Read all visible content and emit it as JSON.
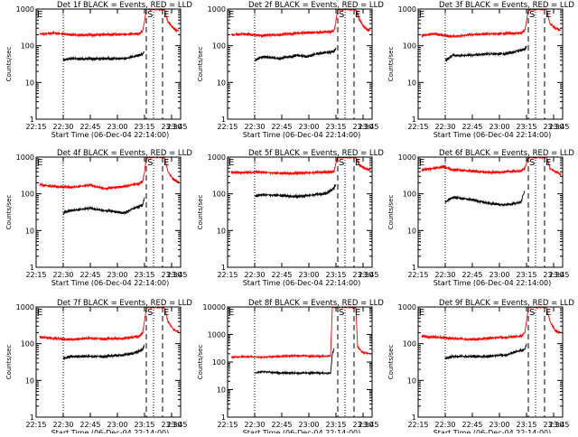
{
  "colors": {
    "events": "#000000",
    "lld": "#ff0000",
    "axis": "#000000"
  },
  "shared": {
    "ylabel": "Counts/sec",
    "xlabel": "Start Time (06-Dec-04 22:14:00)",
    "xticks": [
      "22:15",
      "22:30",
      "22:45",
      "23:00",
      "23:15",
      "23:30",
      "23:45"
    ],
    "markers": {
      "S": "S",
      "E": "E"
    }
  },
  "chart_data": [
    {
      "type": "line",
      "title": "Det 1f BLACK = Events, RED = LLD",
      "ylog": true,
      "ylim": [
        1,
        1000
      ],
      "yticks": [
        "1",
        "10",
        "100",
        "1000"
      ],
      "xlim_min": [
        1,
        81
      ],
      "dotted_x_min": [
        16,
        66
      ],
      "dashed_x_min": [
        62,
        71
      ],
      "S_min": 62,
      "E_min": 71,
      "top_E_min": 1,
      "series": [
        {
          "name": "Events",
          "x_min": [
            16,
            20,
            30,
            40,
            50,
            55,
            60,
            61
          ],
          "y": [
            40,
            45,
            44,
            44,
            45,
            50,
            60,
            70
          ]
        },
        {
          "name": "LLD",
          "x_min": [
            3,
            10,
            20,
            30,
            40,
            50,
            58,
            60,
            61,
            62,
            72,
            74,
            77,
            80
          ],
          "y": [
            210,
            220,
            200,
            195,
            200,
            205,
            210,
            260,
            450,
            1000,
            1000,
            450,
            300,
            250
          ]
        }
      ]
    },
    {
      "type": "line",
      "title": "Det 2f BLACK = Events, RED = LLD",
      "ylog": true,
      "ylim": [
        1,
        1000
      ],
      "yticks": [
        "1",
        "10",
        "100",
        "1000"
      ],
      "xlim_min": [
        1,
        81
      ],
      "dotted_x_min": [
        16,
        66
      ],
      "dashed_x_min": [
        62,
        71
      ],
      "S_min": 62,
      "E_min": 71,
      "top_E_min": 1,
      "series": [
        {
          "name": "Events",
          "x_min": [
            16,
            20,
            30,
            40,
            45,
            50,
            55,
            60,
            61
          ],
          "y": [
            40,
            50,
            45,
            55,
            50,
            60,
            65,
            70,
            90
          ]
        },
        {
          "name": "LLD",
          "x_min": [
            3,
            10,
            20,
            30,
            40,
            50,
            58,
            60,
            61,
            62,
            72,
            74,
            77,
            80
          ],
          "y": [
            200,
            210,
            190,
            200,
            220,
            230,
            240,
            260,
            450,
            1000,
            1000,
            500,
            300,
            260
          ]
        }
      ]
    },
    {
      "type": "line",
      "title": "Det 3f BLACK = Events, RED = LLD",
      "ylog": true,
      "ylim": [
        1,
        1000
      ],
      "yticks": [
        "1",
        "10",
        "100",
        "1000"
      ],
      "xlim_min": [
        1,
        81
      ],
      "dotted_x_min": [
        16,
        66
      ],
      "dashed_x_min": [
        62,
        71
      ],
      "S_min": 62,
      "E_min": 71,
      "top_E_min": 1,
      "series": [
        {
          "name": "Events",
          "x_min": [
            16,
            20,
            30,
            40,
            50,
            55,
            60,
            61
          ],
          "y": [
            40,
            55,
            55,
            60,
            60,
            70,
            80,
            100
          ]
        },
        {
          "name": "LLD",
          "x_min": [
            3,
            10,
            20,
            30,
            40,
            50,
            58,
            60,
            61,
            62,
            72,
            74,
            77,
            80
          ],
          "y": [
            190,
            210,
            180,
            200,
            210,
            215,
            220,
            260,
            450,
            1000,
            1000,
            400,
            300,
            260
          ]
        }
      ]
    },
    {
      "type": "line",
      "title": "Det 4f BLACK = Events, RED = LLD",
      "ylog": true,
      "ylim": [
        1,
        1000
      ],
      "yticks": [
        "1",
        "10",
        "100",
        "1000"
      ],
      "xlim_min": [
        1,
        81
      ],
      "dotted_x_min": [
        16,
        66
      ],
      "dashed_x_min": [
        62,
        71
      ],
      "S_min": 62,
      "E_min": 71,
      "top_E_min": 1,
      "series": [
        {
          "name": "Events",
          "x_min": [
            16,
            20,
            30,
            40,
            50,
            55,
            60,
            61
          ],
          "y": [
            30,
            35,
            40,
            35,
            30,
            40,
            50,
            80
          ]
        },
        {
          "name": "LLD",
          "x_min": [
            3,
            10,
            20,
            30,
            40,
            50,
            58,
            60,
            61,
            62,
            72,
            74,
            77,
            80
          ],
          "y": [
            180,
            160,
            150,
            170,
            140,
            160,
            190,
            220,
            400,
            1000,
            1000,
            400,
            250,
            200
          ]
        }
      ]
    },
    {
      "type": "line",
      "title": "Det 5f BLACK = Events, RED = LLD",
      "ylog": true,
      "ylim": [
        1,
        1000
      ],
      "yticks": [
        "1",
        "10",
        "100",
        "1000"
      ],
      "xlim_min": [
        1,
        81
      ],
      "dotted_x_min": [
        16,
        66
      ],
      "dashed_x_min": [
        62,
        71
      ],
      "S_min": 62,
      "E_min": 71,
      "top_E_min": 1,
      "series": [
        {
          "name": "Events",
          "x_min": [
            16,
            20,
            30,
            40,
            50,
            55,
            58,
            60,
            61
          ],
          "y": [
            85,
            95,
            90,
            85,
            95,
            100,
            120,
            150,
            180
          ]
        },
        {
          "name": "LLD",
          "x_min": [
            3,
            10,
            20,
            30,
            40,
            50,
            58,
            60,
            61,
            62,
            72,
            74,
            77,
            80
          ],
          "y": [
            380,
            380,
            390,
            360,
            370,
            380,
            390,
            420,
            700,
            1000,
            1000,
            600,
            500,
            450
          ]
        }
      ]
    },
    {
      "type": "line",
      "title": "Det 6f BLACK = Events, RED = LLD",
      "ylog": true,
      "ylim": [
        1,
        1000
      ],
      "yticks": [
        "1",
        "10",
        "100",
        "1000"
      ],
      "xlim_min": [
        1,
        81
      ],
      "dotted_x_min": [
        16,
        66
      ],
      "dashed_x_min": [
        62,
        71
      ],
      "S_min": 62,
      "E_min": 71,
      "top_E_min": 1,
      "series": [
        {
          "name": "Events",
          "x_min": [
            16,
            20,
            30,
            40,
            50,
            55,
            58,
            59,
            60
          ],
          "y": [
            60,
            80,
            70,
            55,
            50,
            55,
            60,
            90,
            120
          ]
        },
        {
          "name": "LLD",
          "x_min": [
            3,
            10,
            15,
            20,
            30,
            40,
            50,
            58,
            60,
            61,
            62,
            72,
            74,
            77,
            80
          ],
          "y": [
            450,
            500,
            550,
            450,
            420,
            380,
            400,
            420,
            500,
            700,
            1000,
            1000,
            500,
            400,
            350
          ]
        }
      ]
    },
    {
      "type": "line",
      "title": "Det 7f BLACK = Events, RED = LLD",
      "ylog": true,
      "ylim": [
        1,
        1000
      ],
      "yticks": [
        "1",
        "10",
        "100",
        "1000"
      ],
      "xlim_min": [
        1,
        81
      ],
      "dotted_x_min": [
        16,
        66
      ],
      "dashed_x_min": [
        62,
        71
      ],
      "S_min": 62,
      "E_min": 71,
      "top_E_min": 1,
      "series": [
        {
          "name": "Events",
          "x_min": [
            16,
            20,
            30,
            40,
            50,
            55,
            60,
            61
          ],
          "y": [
            40,
            45,
            45,
            45,
            50,
            55,
            70,
            90
          ]
        },
        {
          "name": "LLD",
          "x_min": [
            3,
            10,
            20,
            30,
            40,
            50,
            58,
            60,
            61,
            62,
            72,
            74,
            77,
            80
          ],
          "y": [
            150,
            140,
            130,
            140,
            135,
            140,
            160,
            200,
            400,
            1000,
            1000,
            400,
            250,
            200
          ]
        }
      ]
    },
    {
      "type": "line",
      "title": "Det 8f BLACK = Events, RED = LLD",
      "ylog": true,
      "ylim": [
        1,
        10000
      ],
      "yticks": [
        "1",
        "10",
        "100",
        "1000",
        "10000"
      ],
      "xlim_min": [
        1,
        81
      ],
      "dotted_x_min": [
        16,
        66
      ],
      "dashed_x_min": [
        62,
        71
      ],
      "S_min": 62,
      "E_min": 71,
      "top_E_min": 1,
      "series": [
        {
          "name": "Events",
          "x_min": [
            16,
            20,
            30,
            40,
            50,
            55,
            58,
            59,
            60
          ],
          "y": [
            40,
            45,
            40,
            40,
            40,
            40,
            40,
            200,
            300
          ]
        },
        {
          "name": "LLD",
          "x_min": [
            3,
            10,
            20,
            30,
            40,
            50,
            58,
            59,
            60,
            72,
            73,
            76,
            80
          ],
          "y": [
            150,
            160,
            150,
            160,
            170,
            160,
            170,
            10000,
            10000,
            10000,
            350,
            220,
            200
          ]
        }
      ]
    },
    {
      "type": "line",
      "title": "Det 9f BLACK = Events, RED = LLD",
      "ylog": true,
      "ylim": [
        1,
        1000
      ],
      "yticks": [
        "1",
        "10",
        "100",
        "1000"
      ],
      "xlim_min": [
        1,
        81
      ],
      "dotted_x_min": [
        16,
        66
      ],
      "dashed_x_min": [
        62,
        71
      ],
      "S_min": 62,
      "E_min": 71,
      "top_E_min": 1,
      "series": [
        {
          "name": "Events",
          "x_min": [
            16,
            20,
            30,
            40,
            50,
            55,
            60,
            61
          ],
          "y": [
            40,
            45,
            45,
            45,
            50,
            60,
            70,
            100
          ]
        },
        {
          "name": "LLD",
          "x_min": [
            3,
            10,
            20,
            30,
            40,
            50,
            58,
            60,
            61,
            62,
            72,
            74,
            77,
            80
          ],
          "y": [
            160,
            150,
            140,
            130,
            140,
            150,
            160,
            200,
            400,
            1000,
            1000,
            400,
            220,
            200
          ]
        }
      ]
    }
  ]
}
